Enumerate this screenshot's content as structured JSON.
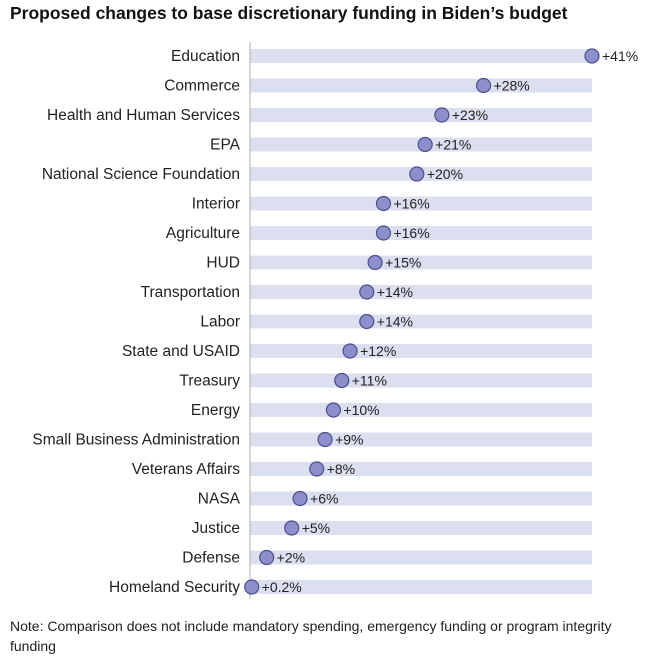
{
  "title": "Proposed changes to base discretionary funding in Biden’s budget",
  "note": "Note: Comparison does not include mandatory spending, emergency funding or program integrity funding",
  "colors": {
    "track": "#dcdfef",
    "dot_fill": "#8c8fcc",
    "dot_stroke": "#4d4f8c",
    "axis_line": "#b0b0b0",
    "text": "#222222"
  },
  "chart_data": {
    "type": "dot",
    "orientation": "horizontal",
    "xlim": [
      0,
      45
    ],
    "categories": [
      "Education",
      "Commerce",
      "Health and Human Services",
      "EPA",
      "National Science Foundation",
      "Interior",
      "Agriculture",
      "HUD",
      "Transportation",
      "Labor",
      "State and USAID",
      "Treasury",
      "Energy",
      "Small Business Administration",
      "Veterans Affairs",
      "NASA",
      "Justice",
      "Defense",
      "Homeland Security"
    ],
    "values": [
      41,
      28,
      23,
      21,
      20,
      16,
      16,
      15,
      14,
      14,
      12,
      11,
      10,
      9,
      8,
      6,
      5,
      2,
      0.2
    ],
    "labels": [
      "+41%",
      "+28%",
      "+23%",
      "+21%",
      "+20%",
      "+16%",
      "+16%",
      "+15%",
      "+14%",
      "+14%",
      "+12%",
      "+11%",
      "+10%",
      "+9%",
      "+8%",
      "+6%",
      "+5%",
      "+2%",
      "+0.2%"
    ],
    "unit": "%",
    "grid": false,
    "legend": "none"
  }
}
